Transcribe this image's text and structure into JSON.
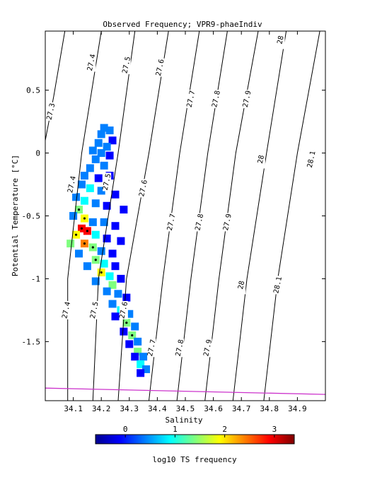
{
  "chart_data": {
    "type": "scatter",
    "title": "Observed Frequency; VPR9-phaeIndiv",
    "xlabel": "Salinity",
    "ylabel": "Potential Temperature [°C]",
    "xlim": [
      34.0,
      35.0
    ],
    "ylim": [
      -1.97,
      0.97
    ],
    "xticks": [
      {
        "v": 34.1,
        "label": "34.1"
      },
      {
        "v": 34.2,
        "label": "34.2"
      },
      {
        "v": 34.3,
        "label": "34.3"
      },
      {
        "v": 34.4,
        "label": "34.4"
      },
      {
        "v": 34.5,
        "label": "34.5"
      },
      {
        "v": 34.6,
        "label": "34.6"
      },
      {
        "v": 34.7,
        "label": "34.7"
      },
      {
        "v": 34.8,
        "label": "34.8"
      },
      {
        "v": 34.9,
        "label": "34.9"
      }
    ],
    "yticks": [
      {
        "v": 0.5,
        "label": "0.5"
      },
      {
        "v": 0.0,
        "label": "0"
      },
      {
        "v": -0.5,
        "label": "-0.5"
      },
      {
        "v": -1.0,
        "label": "-1"
      },
      {
        "v": -1.5,
        "label": "-1.5"
      }
    ],
    "density_isopycnals": [
      {
        "sigma": 27.3,
        "label": "27.3",
        "line": [
          [
            34.0,
            0.1
          ],
          [
            34.03,
            0.45
          ],
          [
            34.07,
            0.97
          ]
        ],
        "label_at": [
          34.02,
          0.33
        ]
      },
      {
        "sigma": 27.4,
        "label": "27.4",
        "line": [
          [
            34.08,
            -1.97
          ],
          [
            34.08,
            -1.0
          ],
          [
            34.13,
            0.0
          ],
          [
            34.2,
            0.97
          ]
        ],
        "label_at": [
          34.17,
          0.72
        ],
        "labels": [
          {
            "label": "27.4",
            "at": [
              34.165,
              0.72
            ]
          },
          {
            "label": "27.4",
            "at": [
              34.095,
              -0.25
            ]
          },
          {
            "label": "27.4",
            "at": [
              34.075,
              -1.25
            ]
          }
        ]
      },
      {
        "sigma": 27.5,
        "label": "27.5",
        "line": [
          [
            34.17,
            -1.97
          ],
          [
            34.19,
            -1.0
          ],
          [
            34.26,
            0.0
          ],
          [
            34.32,
            0.97
          ]
        ],
        "labels": [
          {
            "label": "27.5",
            "at": [
              34.29,
              0.7
            ]
          },
          {
            "label": "27.5",
            "at": [
              34.22,
              -0.23
            ]
          },
          {
            "label": "27.5",
            "at": [
              34.175,
              -1.25
            ]
          }
        ]
      },
      {
        "sigma": 27.6,
        "label": "27.6",
        "line": [
          [
            34.26,
            -1.97
          ],
          [
            34.29,
            -1.0
          ],
          [
            34.37,
            0.0
          ],
          [
            34.44,
            0.97
          ]
        ],
        "labels": [
          {
            "label": "27.6",
            "at": [
              34.41,
              0.68
            ]
          },
          {
            "label": "27.6",
            "at": [
              34.35,
              -0.28
            ]
          },
          {
            "label": "27.6",
            "at": [
              34.28,
              -1.25
            ]
          }
        ]
      },
      {
        "sigma": 27.7,
        "label": "27.7",
        "line": [
          [
            34.37,
            -1.97
          ],
          [
            34.42,
            -1.0
          ],
          [
            34.48,
            0.0
          ],
          [
            34.55,
            0.97
          ]
        ],
        "labels": [
          {
            "label": "27.7",
            "at": [
              34.52,
              0.43
            ]
          },
          {
            "label": "27.7",
            "at": [
              34.45,
              -0.55
            ]
          },
          {
            "label": "27.7",
            "at": [
              34.38,
              -1.55
            ]
          }
        ]
      },
      {
        "sigma": 27.8,
        "label": "27.8",
        "line": [
          [
            34.47,
            -1.97
          ],
          [
            34.52,
            -1.0
          ],
          [
            34.58,
            0.0
          ],
          [
            34.65,
            0.97
          ]
        ],
        "labels": [
          {
            "label": "27.8",
            "at": [
              34.61,
              0.43
            ]
          },
          {
            "label": "27.8",
            "at": [
              34.55,
              -0.55
            ]
          },
          {
            "label": "27.8",
            "at": [
              34.48,
              -1.55
            ]
          }
        ]
      },
      {
        "sigma": 27.9,
        "label": "27.9",
        "line": [
          [
            34.57,
            -1.97
          ],
          [
            34.62,
            -1.0
          ],
          [
            34.68,
            0.0
          ],
          [
            34.76,
            0.97
          ]
        ],
        "labels": [
          {
            "label": "27.9",
            "at": [
              34.72,
              0.43
            ]
          },
          {
            "label": "27.9",
            "at": [
              34.65,
              -0.55
            ]
          },
          {
            "label": "27.9",
            "at": [
              34.58,
              -1.55
            ]
          }
        ]
      },
      {
        "sigma": 28.0,
        "label": "28",
        "line": [
          [
            34.67,
            -1.97
          ],
          [
            34.72,
            -1.0
          ],
          [
            34.79,
            0.0
          ],
          [
            34.86,
            0.97
          ]
        ],
        "labels": [
          {
            "label": "28",
            "at": [
              34.84,
              0.9
            ]
          },
          {
            "label": "28",
            "at": [
              34.77,
              -0.05
            ]
          },
          {
            "label": "28",
            "at": [
              34.7,
              -1.05
            ]
          }
        ]
      },
      {
        "sigma": 28.1,
        "label": "28.1",
        "line": [
          [
            34.78,
            -1.97
          ],
          [
            34.83,
            -1.0
          ],
          [
            34.9,
            0.0
          ],
          [
            34.98,
            0.97
          ]
        ],
        "labels": [
          {
            "label": "28.1",
            "at": [
              34.95,
              -0.05
            ]
          },
          {
            "label": "28.1",
            "at": [
              34.83,
              -1.05
            ]
          }
        ]
      }
    ],
    "freezing_line": [
      [
        34.0,
        -1.87
      ],
      [
        35.0,
        -1.92
      ]
    ],
    "colors": {
      "isopycnal": "#000000",
      "freezing_line": "#cc33cc"
    },
    "colorbar": {
      "label": "log10 TS frequency",
      "range": [
        -0.6,
        3.4
      ],
      "ticks": [
        {
          "v": 0,
          "label": "0"
        },
        {
          "v": 1,
          "label": "1"
        },
        {
          "v": 2,
          "label": "2"
        },
        {
          "v": 3,
          "label": "3"
        }
      ],
      "colormap": [
        "#00008f",
        "#0000ff",
        "#007fff",
        "#00ffff",
        "#7fff7f",
        "#ffff00",
        "#ff7f00",
        "#ff0000",
        "#7f0000"
      ]
    },
    "frequency_cells": [
      [
        34.21,
        0.2,
        0.4
      ],
      [
        34.23,
        0.18,
        0.2
      ],
      [
        34.2,
        0.15,
        0.6
      ],
      [
        34.24,
        0.1,
        0.1
      ],
      [
        34.22,
        0.05,
        0.3
      ],
      [
        34.19,
        0.08,
        0.5
      ],
      [
        34.2,
        0.0,
        0.2
      ],
      [
        34.17,
        0.02,
        0.3
      ],
      [
        34.23,
        -0.02,
        0.0
      ],
      [
        34.18,
        -0.05,
        0.4
      ],
      [
        34.21,
        -0.1,
        0.6
      ],
      [
        34.16,
        -0.12,
        0.2
      ],
      [
        34.14,
        -0.18,
        0.5
      ],
      [
        34.19,
        -0.2,
        0.1
      ],
      [
        34.23,
        -0.18,
        0.0
      ],
      [
        34.13,
        -0.25,
        0.3
      ],
      [
        34.16,
        -0.28,
        0.8
      ],
      [
        34.2,
        -0.3,
        0.2
      ],
      [
        34.25,
        -0.33,
        0.0
      ],
      [
        34.11,
        -0.35,
        0.4
      ],
      [
        34.14,
        -0.38,
        1.0
      ],
      [
        34.18,
        -0.4,
        0.3
      ],
      [
        34.22,
        -0.42,
        0.1
      ],
      [
        34.28,
        -0.45,
        -0.2
      ],
      [
        34.12,
        -0.45,
        1.5
      ],
      [
        34.1,
        -0.5,
        0.6
      ],
      [
        34.14,
        -0.52,
        2.0
      ],
      [
        34.17,
        -0.55,
        0.5
      ],
      [
        34.21,
        -0.55,
        0.2
      ],
      [
        34.25,
        -0.58,
        -0.1
      ],
      [
        34.13,
        -0.6,
        2.8
      ],
      [
        34.15,
        -0.62,
        3.1
      ],
      [
        34.11,
        -0.65,
        1.8
      ],
      [
        34.18,
        -0.65,
        0.8
      ],
      [
        34.22,
        -0.68,
        0.1
      ],
      [
        34.27,
        -0.7,
        -0.2
      ],
      [
        34.09,
        -0.72,
        1.2
      ],
      [
        34.14,
        -0.72,
        2.4
      ],
      [
        34.17,
        -0.75,
        1.6
      ],
      [
        34.2,
        -0.78,
        0.5
      ],
      [
        34.24,
        -0.8,
        0.0
      ],
      [
        34.12,
        -0.8,
        0.6
      ],
      [
        34.18,
        -0.85,
        1.4
      ],
      [
        34.21,
        -0.88,
        0.8
      ],
      [
        34.25,
        -0.9,
        0.1
      ],
      [
        34.15,
        -0.9,
        0.3
      ],
      [
        34.2,
        -0.95,
        1.9
      ],
      [
        34.23,
        -0.98,
        0.9
      ],
      [
        34.27,
        -1.0,
        0.0
      ],
      [
        34.18,
        -1.02,
        0.2
      ],
      [
        34.24,
        -1.05,
        1.3
      ],
      [
        34.22,
        -1.1,
        0.4
      ],
      [
        34.26,
        -1.12,
        0.6
      ],
      [
        34.29,
        -1.15,
        0.0
      ],
      [
        34.24,
        -1.2,
        0.2
      ],
      [
        34.27,
        -1.25,
        1.1
      ],
      [
        34.3,
        -1.28,
        0.3
      ],
      [
        34.25,
        -1.3,
        0.0
      ],
      [
        34.29,
        -1.35,
        1.4
      ],
      [
        34.32,
        -1.38,
        0.2
      ],
      [
        34.28,
        -1.42,
        0.1
      ],
      [
        34.31,
        -1.45,
        1.6
      ],
      [
        34.33,
        -1.5,
        0.6
      ],
      [
        34.3,
        -1.52,
        0.0
      ],
      [
        34.33,
        -1.58,
        1.2
      ],
      [
        34.35,
        -1.62,
        0.4
      ],
      [
        34.32,
        -1.62,
        0.0
      ],
      [
        34.34,
        -1.68,
        1.0
      ],
      [
        34.36,
        -1.72,
        0.3
      ],
      [
        34.34,
        -1.75,
        0.1
      ]
    ]
  }
}
